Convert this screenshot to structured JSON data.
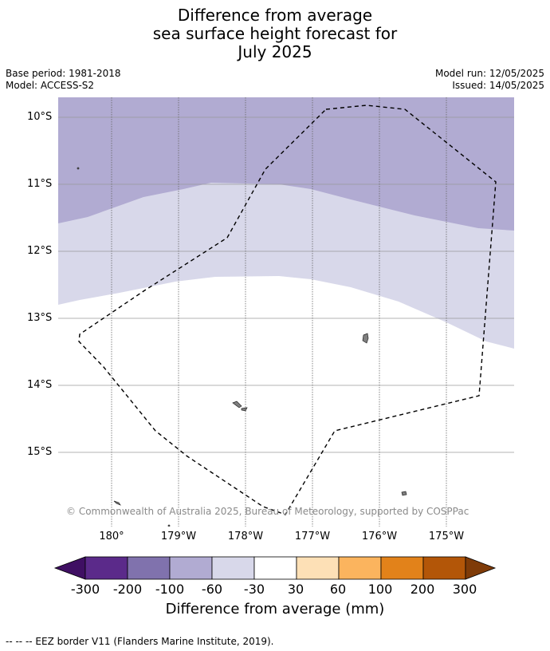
{
  "title": [
    "Difference from average",
    "sea surface height forecast for",
    "July 2025"
  ],
  "meta_left": [
    "Base period: 1981-2018",
    "Model: ACCESS-S2"
  ],
  "meta_right": [
    "Model run: 12/05/2025",
    "Issued: 14/05/2025"
  ],
  "lat_labels": [
    "10°S",
    "11°S",
    "12°S",
    "13°S",
    "14°S",
    "15°S"
  ],
  "lon_labels": [
    "180°",
    "179°W",
    "178°W",
    "177°W",
    "176°W",
    "175°W"
  ],
  "copyright": "© Commonwealth of Australia 2025, Bureau of Meteorology, supported by COSPPac",
  "colorbar": {
    "ticks": [
      "-300",
      "-200",
      "-100",
      "-60",
      "-30",
      "30",
      "60",
      "100",
      "200",
      "300"
    ],
    "colors": [
      "#3f0f63",
      "#5b2a8a",
      "#8072ad",
      "#b1abd2",
      "#d8d8ea",
      "#ffffff",
      "#fde0b6",
      "#fbb45e",
      "#e2821a",
      "#b35608",
      "#7f3b08"
    ],
    "title": "Difference from average (mm)"
  },
  "legend_text": "-- -- -- EEZ border V11 (Flanders Marine Institute, 2019).",
  "fill_colors": {
    "band_-100_-60": "#b1abd2",
    "band_-60_-30": "#d8d8ea",
    "land": "#7f7f7f"
  }
}
